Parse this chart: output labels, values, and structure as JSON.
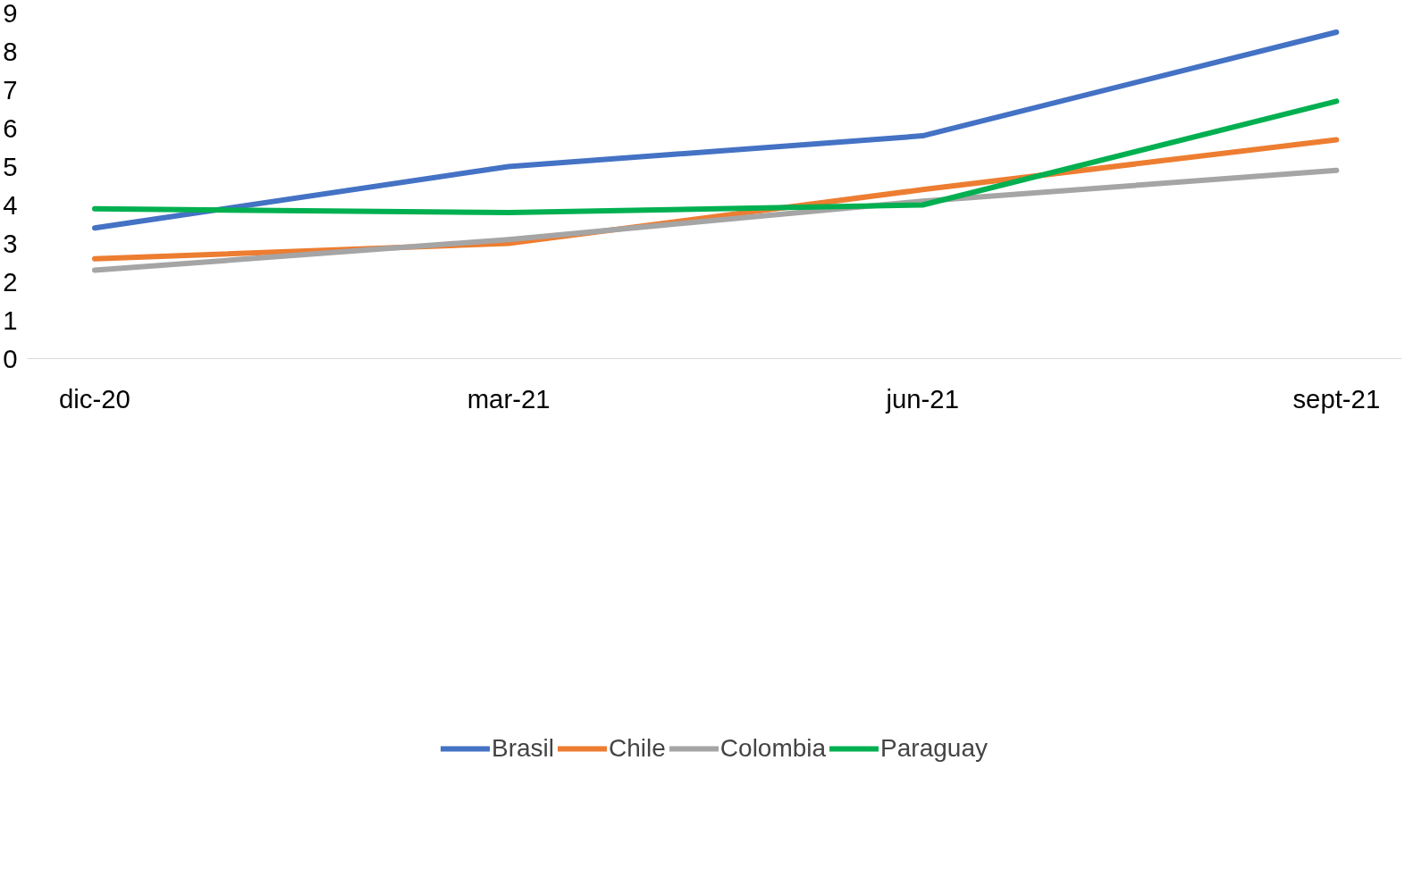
{
  "chart_data": {
    "type": "line",
    "categories": [
      "dic-20",
      "mar-21",
      "jun-21",
      "sept-21"
    ],
    "series": [
      {
        "name": "Brasil",
        "color": "#4472c4",
        "values": [
          3.4,
          5.0,
          5.8,
          8.5
        ]
      },
      {
        "name": "Chile",
        "color": "#ed7d31",
        "values": [
          2.6,
          3.0,
          4.4,
          5.7
        ]
      },
      {
        "name": "Colombia",
        "color": "#a5a5a5",
        "values": [
          2.3,
          3.1,
          4.1,
          4.9
        ]
      },
      {
        "name": "Paraguay",
        "color": "#00b050",
        "values": [
          3.9,
          3.8,
          4.0,
          6.7
        ]
      }
    ],
    "ylim": [
      0,
      9
    ],
    "yticks": [
      0,
      1,
      2,
      3,
      4,
      5,
      6,
      7,
      8,
      9
    ],
    "grid": false,
    "legend": "bottom",
    "marker": "none",
    "line_style": "solid"
  }
}
